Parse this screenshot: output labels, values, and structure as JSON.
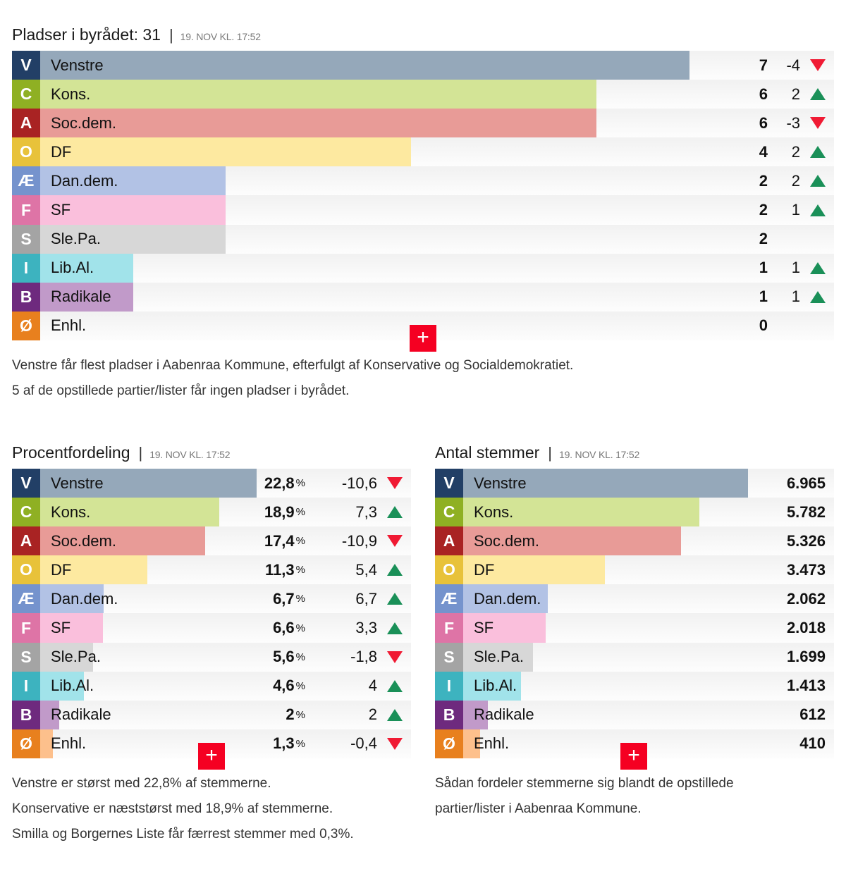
{
  "colors": {
    "up": "#1a9058",
    "down": "#f01a33",
    "plus_button": "#f50022"
  },
  "parties": [
    {
      "letter": "V",
      "name": "Venstre",
      "box": "#223f66",
      "bar": "#95a8ba"
    },
    {
      "letter": "C",
      "name": "Kons.",
      "box": "#8fb023",
      "bar": "#d3e496"
    },
    {
      "letter": "A",
      "name": "Soc.dem.",
      "box": "#a92323",
      "bar": "#e89b97"
    },
    {
      "letter": "O",
      "name": "DF",
      "box": "#e8c23a",
      "bar": "#fde9a0"
    },
    {
      "letter": "Æ",
      "name": "Dan.dem.",
      "box": "#7593cd",
      "bar": "#b2c2e5"
    },
    {
      "letter": "F",
      "name": "SF",
      "box": "#de74a6",
      "bar": "#fabfdc"
    },
    {
      "letter": "S",
      "name": "Sle.Pa.",
      "box": "#a4a4a4",
      "bar": "#d7d7d7"
    },
    {
      "letter": "I",
      "name": "Lib.Al.",
      "box": "#3db3bf",
      "bar": "#a1e3ea"
    },
    {
      "letter": "B",
      "name": "Radikale",
      "box": "#6e2a7e",
      "bar": "#c19ac9"
    },
    {
      "letter": "Ø",
      "name": "Enhl.",
      "box": "#e8801e",
      "bar": "#fdc08c"
    }
  ],
  "seats": {
    "title": "Pladser i byrådet: 31",
    "separator": "|",
    "timestamp": "19. NOV KL. 17:52",
    "plus_label": "+",
    "caption": [
      "Venstre får flest pladser i Aabenraa Kommune, efterfulgt af Konservative og Socialdemokratiet.",
      "5 af de opstillede partier/lister får ingen pladser i byrådet."
    ]
  },
  "percent": {
    "title": "Procentfordeling",
    "separator": "|",
    "timestamp": "19. NOV KL. 17:52",
    "unit": "%",
    "plus_label": "+",
    "caption": [
      "Venstre er størst med 22,8% af stemmerne.",
      "Konservative er næststørst med 18,9% af stemmerne.",
      "Smilla og Borgernes Liste får færrest stemmer med 0,3%."
    ]
  },
  "votes": {
    "title": "Antal stemmer",
    "separator": "|",
    "timestamp": "19. NOV KL. 17:52",
    "plus_label": "+",
    "caption": [
      "Sådan fordeler stemmerne sig blandt de opstillede",
      "partier/lister i Aabenraa Kommune."
    ]
  },
  "chart_data": [
    {
      "type": "bar",
      "orientation": "horizontal",
      "title": "Pladser i byrådet: 31",
      "subtitle": "19. NOV KL. 17:52",
      "categories": [
        "Venstre",
        "Kons.",
        "Soc.dem.",
        "DF",
        "Dan.dem.",
        "SF",
        "Sle.Pa.",
        "Lib.Al.",
        "Radikale",
        "Enhl."
      ],
      "letters": [
        "V",
        "C",
        "A",
        "O",
        "Æ",
        "F",
        "S",
        "I",
        "B",
        "Ø"
      ],
      "values": [
        7,
        6,
        6,
        4,
        2,
        2,
        2,
        1,
        1,
        0
      ],
      "value_labels": [
        "7",
        "6",
        "6",
        "4",
        "2",
        "2",
        "2",
        "1",
        "1",
        "0"
      ],
      "change": [
        -4,
        2,
        -3,
        2,
        2,
        1,
        null,
        1,
        1,
        null
      ],
      "change_labels": [
        "-4",
        "2",
        "-3",
        "2",
        "2",
        "1",
        "",
        "1",
        "1",
        ""
      ],
      "xlim": [
        0,
        7
      ]
    },
    {
      "type": "bar",
      "orientation": "horizontal",
      "title": "Procentfordeling",
      "subtitle": "19. NOV KL. 17:52",
      "categories": [
        "Venstre",
        "Kons.",
        "Soc.dem.",
        "DF",
        "Dan.dem.",
        "SF",
        "Sle.Pa.",
        "Lib.Al.",
        "Radikale",
        "Enhl."
      ],
      "letters": [
        "V",
        "C",
        "A",
        "O",
        "Æ",
        "F",
        "S",
        "I",
        "B",
        "Ø"
      ],
      "values": [
        22.8,
        18.9,
        17.4,
        11.3,
        6.7,
        6.6,
        5.6,
        4.6,
        2,
        1.3
      ],
      "value_labels": [
        "22,8",
        "18,9",
        "17,4",
        "11,3",
        "6,7",
        "6,6",
        "5,6",
        "4,6",
        "2",
        "1,3"
      ],
      "change": [
        -10.6,
        7.3,
        -10.9,
        5.4,
        6.7,
        3.3,
        -1.8,
        4,
        2,
        -0.4
      ],
      "change_labels": [
        "-10,6",
        "7,3",
        "-10,9",
        "5,4",
        "6,7",
        "3,3",
        "-1,8",
        "4",
        "2",
        "-0,4"
      ],
      "xlim": [
        0,
        22.8
      ]
    },
    {
      "type": "bar",
      "orientation": "horizontal",
      "title": "Antal stemmer",
      "subtitle": "19. NOV KL. 17:52",
      "categories": [
        "Venstre",
        "Kons.",
        "Soc.dem.",
        "DF",
        "Dan.dem.",
        "SF",
        "Sle.Pa.",
        "Lib.Al.",
        "Radikale",
        "Enhl."
      ],
      "letters": [
        "V",
        "C",
        "A",
        "O",
        "Æ",
        "F",
        "S",
        "I",
        "B",
        "Ø"
      ],
      "values": [
        6965,
        5782,
        5326,
        3473,
        2062,
        2018,
        1699,
        1413,
        612,
        410
      ],
      "value_labels": [
        "6.965",
        "5.782",
        "5.326",
        "3.473",
        "2.062",
        "2.018",
        "1.699",
        "1.413",
        "612",
        "410"
      ],
      "xlim": [
        0,
        6965
      ]
    }
  ]
}
